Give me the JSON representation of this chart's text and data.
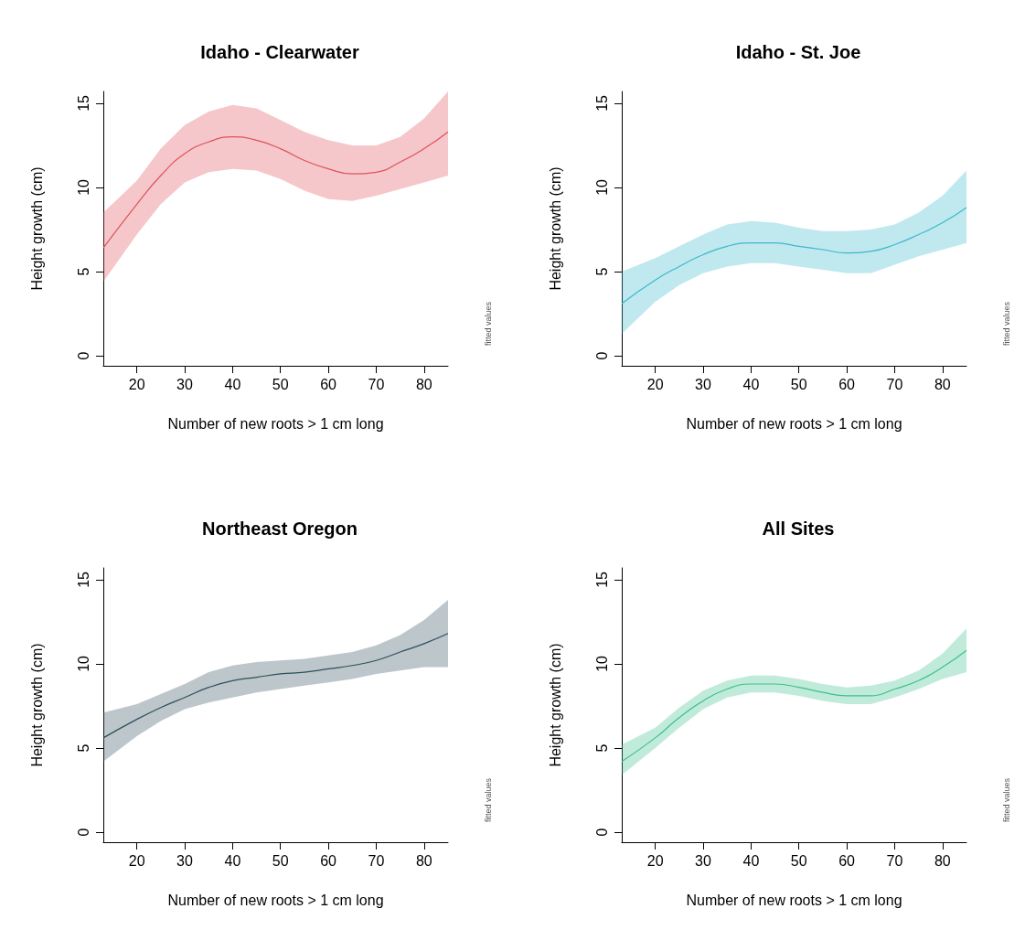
{
  "chart_data": [
    {
      "type": "line",
      "title": "Idaho - Clearwater",
      "xlabel": "Number of new roots > 1 cm long",
      "ylabel": "Height growth (cm)",
      "annotations": [
        "fitted values"
      ],
      "xlim": [
        13,
        85
      ],
      "xticks": [
        20,
        30,
        40,
        50,
        60,
        70,
        80
      ],
      "ylim": [
        -0.6,
        15.7
      ],
      "yticks": [
        0,
        5,
        10,
        15
      ],
      "grid": false,
      "marker": "none",
      "series": [
        {
          "color": "#e0525a",
          "x": [
            13,
            20,
            25,
            30,
            35,
            40,
            45,
            50,
            55,
            60,
            65,
            70,
            75,
            80,
            85
          ],
          "values": [
            6.4,
            9.0,
            10.7,
            12.0,
            12.7,
            13.0,
            12.8,
            12.3,
            11.6,
            11.1,
            10.8,
            10.9,
            11.5,
            12.3,
            13.3
          ],
          "lower": [
            4.4,
            7.2,
            9.0,
            10.3,
            10.9,
            11.1,
            11.0,
            10.5,
            9.8,
            9.3,
            9.2,
            9.5,
            9.9,
            10.3,
            10.7
          ],
          "upper": [
            8.5,
            10.4,
            12.3,
            13.7,
            14.5,
            14.9,
            14.7,
            14.0,
            13.3,
            12.8,
            12.5,
            12.5,
            13.0,
            14.1,
            15.7
          ]
        }
      ]
    },
    {
      "type": "line",
      "title": "Idaho - St. Joe",
      "xlabel": "Number of new roots > 1 cm long",
      "ylabel": "Height growth (cm)",
      "annotations": [
        "fitted values"
      ],
      "xlim": [
        13,
        85
      ],
      "xticks": [
        20,
        30,
        40,
        50,
        60,
        70,
        80
      ],
      "ylim": [
        -0.6,
        15.7
      ],
      "yticks": [
        0,
        5,
        10,
        15
      ],
      "grid": false,
      "marker": "none",
      "series": [
        {
          "color": "#3cb8cc",
          "x": [
            13,
            20,
            25,
            30,
            35,
            40,
            45,
            50,
            55,
            60,
            65,
            70,
            75,
            80,
            85
          ],
          "values": [
            3.1,
            4.5,
            5.3,
            6.0,
            6.5,
            6.7,
            6.7,
            6.5,
            6.3,
            6.1,
            6.2,
            6.6,
            7.2,
            7.9,
            8.8
          ],
          "lower": [
            1.3,
            3.2,
            4.2,
            4.9,
            5.3,
            5.5,
            5.5,
            5.3,
            5.1,
            4.9,
            4.9,
            5.4,
            5.9,
            6.3,
            6.7
          ],
          "upper": [
            5.0,
            5.8,
            6.5,
            7.2,
            7.8,
            8.0,
            7.9,
            7.6,
            7.4,
            7.4,
            7.5,
            7.8,
            8.5,
            9.5,
            11.0
          ]
        }
      ]
    },
    {
      "type": "line",
      "title": "Northeast Oregon",
      "xlabel": "Number of new roots > 1 cm long",
      "ylabel": "Height growth (cm)",
      "annotations": [
        "fitted values"
      ],
      "xlim": [
        13,
        85
      ],
      "xticks": [
        20,
        30,
        40,
        50,
        60,
        70,
        80
      ],
      "ylim": [
        -0.6,
        15.7
      ],
      "yticks": [
        0,
        5,
        10,
        15
      ],
      "grid": false,
      "marker": "none",
      "series": [
        {
          "color": "#2e4f5c",
          "x": [
            13,
            20,
            25,
            30,
            35,
            40,
            45,
            50,
            55,
            60,
            65,
            70,
            75,
            80,
            85
          ],
          "values": [
            5.6,
            6.7,
            7.4,
            8.0,
            8.6,
            9.0,
            9.2,
            9.4,
            9.5,
            9.7,
            9.9,
            10.2,
            10.7,
            11.2,
            11.8
          ],
          "lower": [
            4.2,
            5.7,
            6.6,
            7.3,
            7.7,
            8.0,
            8.3,
            8.5,
            8.7,
            8.9,
            9.1,
            9.4,
            9.6,
            9.8,
            9.8
          ],
          "upper": [
            7.1,
            7.6,
            8.2,
            8.8,
            9.5,
            9.9,
            10.1,
            10.2,
            10.3,
            10.5,
            10.7,
            11.1,
            11.7,
            12.6,
            13.8
          ]
        }
      ]
    },
    {
      "type": "line",
      "title": "All Sites",
      "xlabel": "Number of new roots > 1 cm long",
      "ylabel": "Height growth (cm)",
      "annotations": [
        "fitted values"
      ],
      "xlim": [
        13,
        85
      ],
      "xticks": [
        20,
        30,
        40,
        50,
        60,
        70,
        80
      ],
      "ylim": [
        -0.6,
        15.7
      ],
      "yticks": [
        0,
        5,
        10,
        15
      ],
      "grid": false,
      "marker": "none",
      "series": [
        {
          "color": "#3cc08c",
          "x": [
            13,
            20,
            25,
            30,
            35,
            40,
            45,
            50,
            55,
            60,
            65,
            70,
            75,
            80,
            85
          ],
          "values": [
            4.2,
            5.6,
            6.8,
            7.8,
            8.5,
            8.8,
            8.8,
            8.6,
            8.3,
            8.1,
            8.1,
            8.5,
            9.0,
            9.8,
            10.8
          ],
          "lower": [
            3.4,
            5.0,
            6.2,
            7.3,
            8.0,
            8.3,
            8.3,
            8.1,
            7.8,
            7.6,
            7.6,
            8.0,
            8.5,
            9.1,
            9.5
          ],
          "upper": [
            5.2,
            6.2,
            7.4,
            8.4,
            9.0,
            9.3,
            9.3,
            9.1,
            8.8,
            8.6,
            8.7,
            9.0,
            9.6,
            10.6,
            12.1
          ]
        }
      ]
    }
  ]
}
